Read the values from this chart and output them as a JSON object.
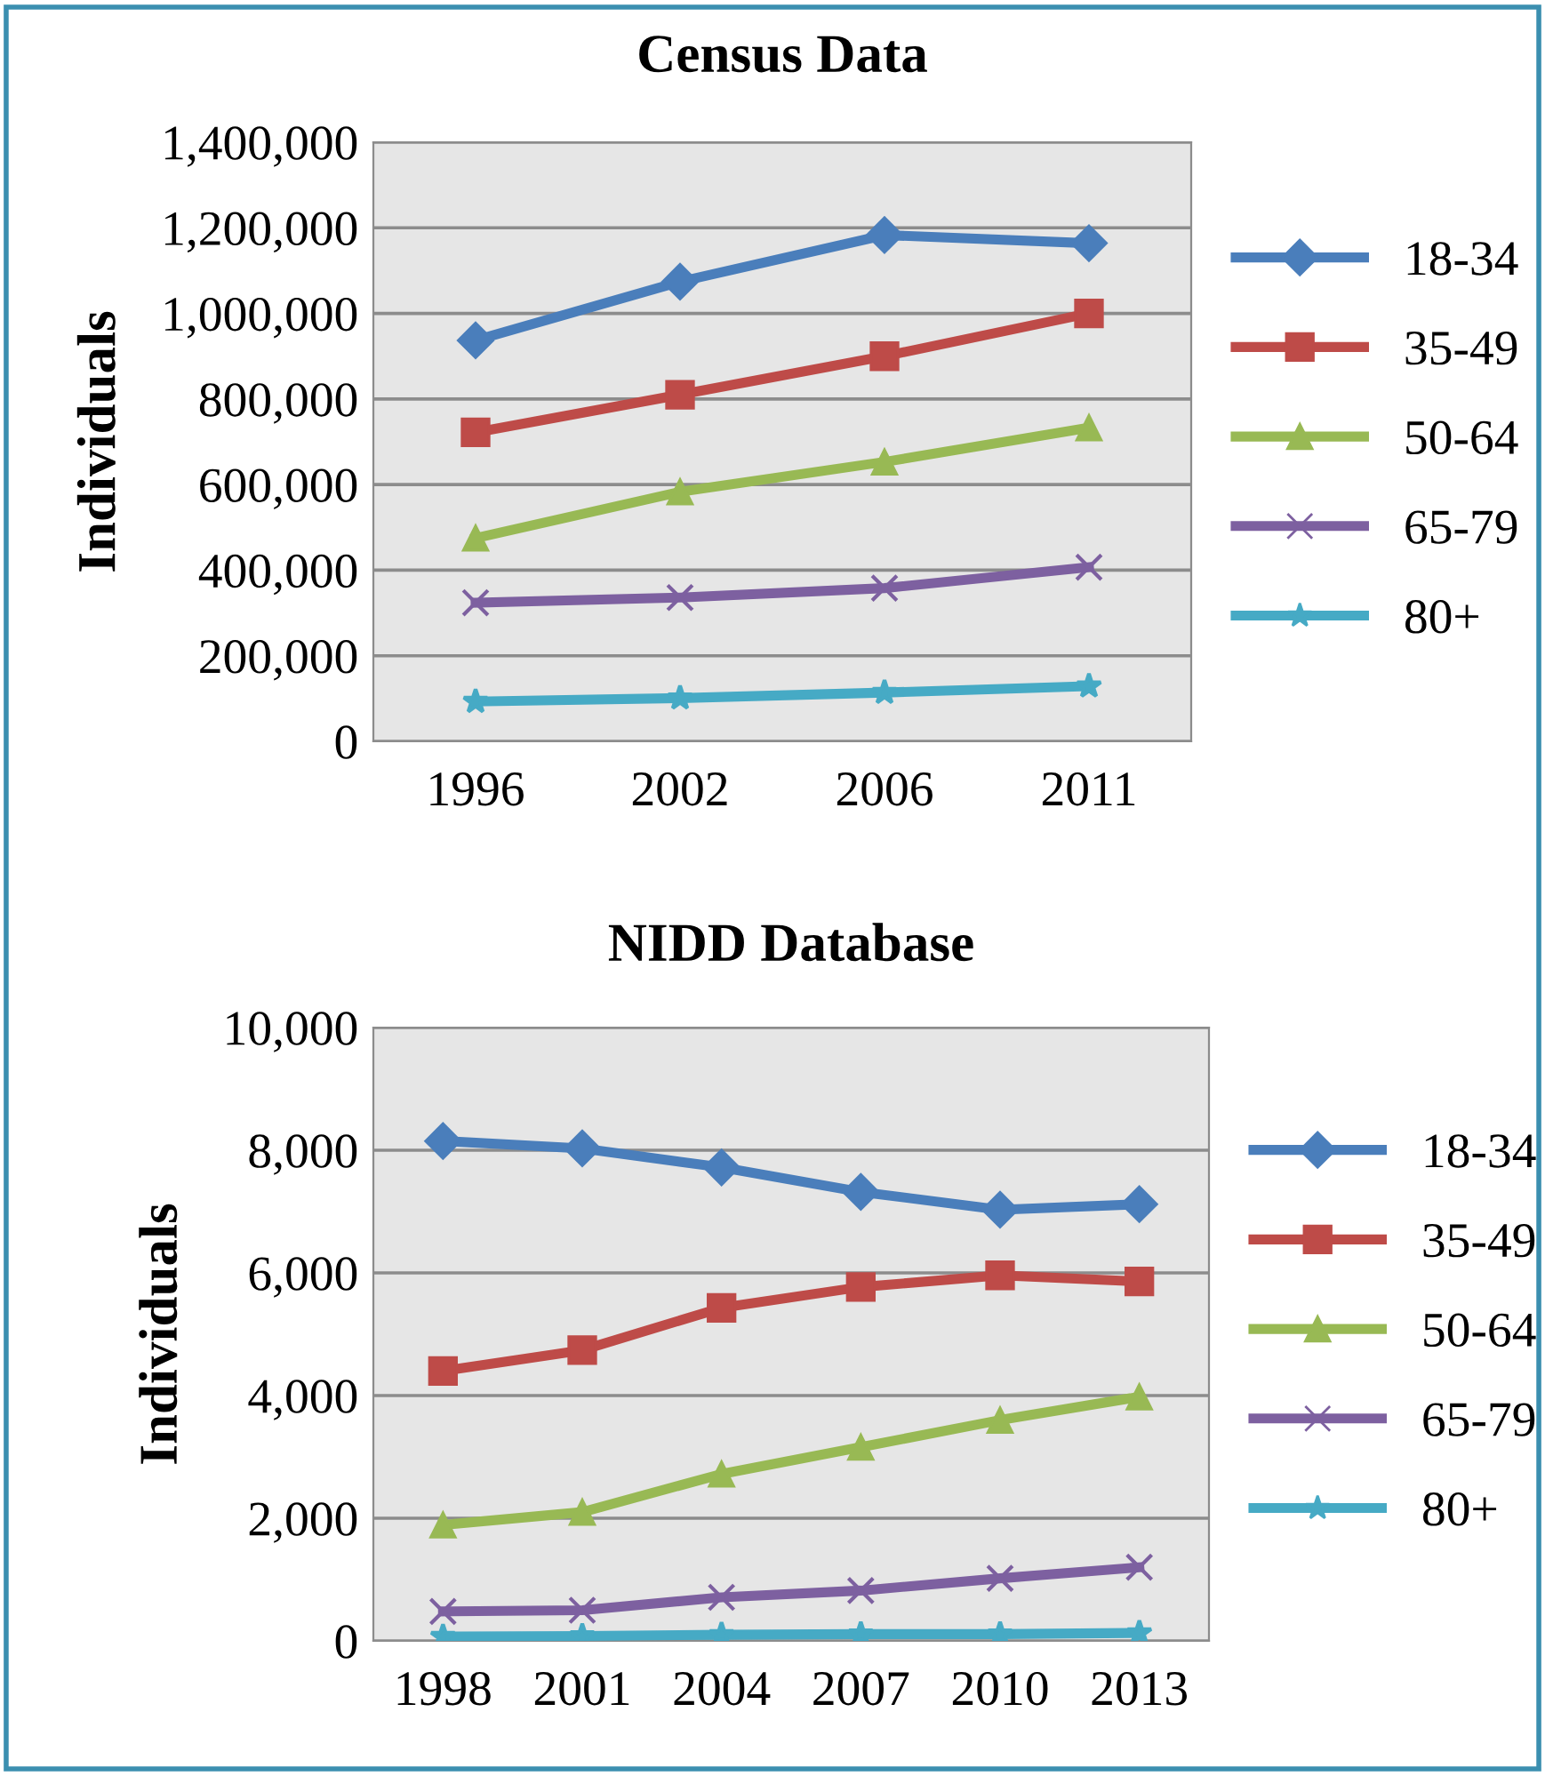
{
  "chart_data": [
    {
      "type": "line",
      "title": "Census Data",
      "ylabel": "Individuals",
      "categories": [
        "1996",
        "2002",
        "2006",
        "2011"
      ],
      "ylim": [
        0,
        1400000
      ],
      "yticks": [
        {
          "value": 0,
          "label": "0"
        },
        {
          "value": 200000,
          "label": "200,000"
        },
        {
          "value": 400000,
          "label": "400,000"
        },
        {
          "value": 600000,
          "label": "600,000"
        },
        {
          "value": 800000,
          "label": "800,000"
        },
        {
          "value": 1000000,
          "label": "1,000,000"
        },
        {
          "value": 1200000,
          "label": "1,200,000"
        },
        {
          "value": 1400000,
          "label": "1,400,000"
        }
      ],
      "grid": "y",
      "legend": "right",
      "series": [
        {
          "name": "18-34",
          "color": "#4a7ebb",
          "marker": "diamond",
          "values": [
            937000,
            1074000,
            1183000,
            1164000
          ]
        },
        {
          "name": "35-49",
          "color": "#be4b48",
          "marker": "square",
          "values": [
            722000,
            810000,
            900000,
            1000000
          ]
        },
        {
          "name": "50-64",
          "color": "#98b954",
          "marker": "triangle",
          "values": [
            475000,
            583000,
            653000,
            733000
          ]
        },
        {
          "name": "65-79",
          "color": "#7d60a0",
          "marker": "cross",
          "values": [
            324000,
            336000,
            358000,
            407000
          ]
        },
        {
          "name": "80+",
          "color": "#46aac5",
          "marker": "star",
          "values": [
            93000,
            101000,
            114000,
            129000
          ]
        }
      ]
    },
    {
      "type": "line",
      "title": "NIDD Database",
      "ylabel": "Individuals",
      "categories": [
        "1998",
        "2001",
        "2004",
        "2007",
        "2010",
        "2013"
      ],
      "ylim": [
        0,
        10000
      ],
      "yticks": [
        {
          "value": 0,
          "label": "0"
        },
        {
          "value": 2000,
          "label": "2,000"
        },
        {
          "value": 4000,
          "label": "4,000"
        },
        {
          "value": 6000,
          "label": "6,000"
        },
        {
          "value": 8000,
          "label": "8,000"
        },
        {
          "value": 10000,
          "label": "10,000"
        }
      ],
      "grid": "y",
      "legend": "right",
      "series": [
        {
          "name": "18-34",
          "color": "#4a7ebb",
          "marker": "diamond",
          "values": [
            8150,
            8030,
            7720,
            7320,
            7030,
            7120
          ]
        },
        {
          "name": "35-49",
          "color": "#be4b48",
          "marker": "square",
          "values": [
            4400,
            4740,
            5430,
            5770,
            5960,
            5860
          ]
        },
        {
          "name": "50-64",
          "color": "#98b954",
          "marker": "triangle",
          "values": [
            1890,
            2100,
            2720,
            3160,
            3600,
            3980
          ]
        },
        {
          "name": "65-79",
          "color": "#7d60a0",
          "marker": "cross",
          "values": [
            480,
            500,
            710,
            820,
            1020,
            1200
          ]
        },
        {
          "name": "80+",
          "color": "#46aac5",
          "marker": "star",
          "values": [
            70,
            80,
            100,
            110,
            110,
            130
          ]
        }
      ]
    }
  ]
}
